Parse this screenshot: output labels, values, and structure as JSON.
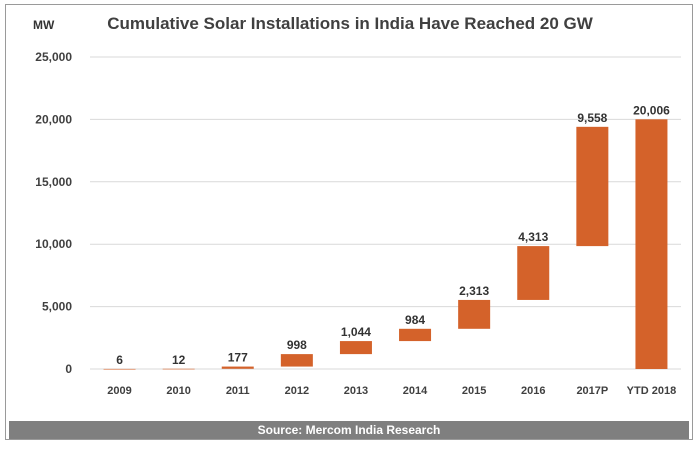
{
  "chart_data": {
    "type": "bar",
    "subtype": "waterfall",
    "title": "Cumulative Solar Installations in India Have Reached 20 GW",
    "unit_label": "MW",
    "categories": [
      "2009",
      "2010",
      "2011",
      "2012",
      "2013",
      "2014",
      "2015",
      "2016",
      "2017P",
      "YTD 2018"
    ],
    "values": [
      6,
      12,
      177,
      998,
      1044,
      984,
      2313,
      4313,
      9558,
      20006
    ],
    "value_labels": [
      "6",
      "12",
      "177",
      "998",
      "1,044",
      "984",
      "2,313",
      "4,313",
      "9,558",
      "20,006"
    ],
    "total_bar": "YTD 2018",
    "ylim": [
      0,
      25000
    ],
    "yticks": [
      0,
      5000,
      10000,
      15000,
      20000,
      25000
    ],
    "ytick_labels": [
      "0",
      "5,000",
      "10,000",
      "15,000",
      "20,000",
      "25,000"
    ],
    "grid": true,
    "legend": false,
    "bar_color": "#d4622a",
    "source": "Source: Mercom India Research"
  }
}
